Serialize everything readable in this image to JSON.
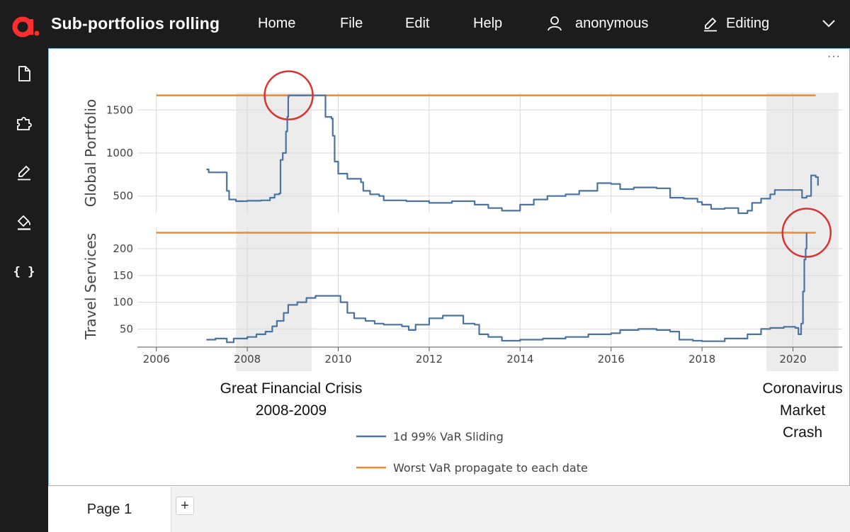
{
  "header": {
    "app_title": "Sub-portfolios rolling",
    "menu": [
      "Home",
      "File",
      "Edit",
      "Help"
    ],
    "user": "anonymous",
    "mode": "Editing"
  },
  "sidebar": {
    "items": [
      {
        "icon": "document-icon"
      },
      {
        "icon": "puzzle-icon"
      },
      {
        "icon": "pencil-icon"
      },
      {
        "icon": "paint-bucket-icon"
      },
      {
        "icon": "braces-icon",
        "label": "{ }"
      }
    ]
  },
  "canvas": {
    "more_label": "···"
  },
  "tabs": {
    "page_label": "Page 1",
    "add_label": "+"
  },
  "colors": {
    "var_series": "#4a73a0",
    "worst_series": "#f0882e",
    "highlight": "#ececec",
    "circle": "#d93232"
  },
  "chart_data": {
    "type": "line",
    "x_ticks": [
      "2006",
      "2008",
      "2010",
      "2012",
      "2014",
      "2016",
      "2018",
      "2020"
    ],
    "xlim": [
      "2005-08",
      "2021-02"
    ],
    "shaded_periods": [
      [
        "2007-10",
        "2009-06"
      ],
      [
        "2019-06",
        "2021-01"
      ]
    ],
    "annotations": [
      {
        "lines": [
          "Great Financial Crisis",
          "2008-2009"
        ],
        "period": "2008-2009"
      },
      {
        "lines": [
          "Coronavirus",
          "Market",
          "Crash"
        ],
        "period": "2020"
      }
    ],
    "legend": [
      "1d 99% VaR Sliding",
      "Worst VaR propagate to each date"
    ],
    "panels": [
      {
        "ylabel": "Global Portfolio",
        "y_ticks": [
          500,
          1000,
          1500
        ],
        "ylim": [
          300,
          1700
        ],
        "worst_var": {
          "from": "2006.0",
          "to": "2020.5",
          "value": 1670
        },
        "var_sliding": [
          [
            2007.1,
            810
          ],
          [
            2007.15,
            775
          ],
          [
            2007.5,
            775
          ],
          [
            2007.55,
            560
          ],
          [
            2007.6,
            460
          ],
          [
            2007.75,
            440
          ],
          [
            2008.0,
            445
          ],
          [
            2008.3,
            450
          ],
          [
            2008.5,
            480
          ],
          [
            2008.6,
            520
          ],
          [
            2008.7,
            530
          ],
          [
            2008.73,
            920
          ],
          [
            2008.78,
            1000
          ],
          [
            2008.85,
            1250
          ],
          [
            2008.88,
            1420
          ],
          [
            2008.9,
            1650
          ],
          [
            2008.91,
            1670
          ],
          [
            2009.7,
            1670
          ],
          [
            2009.72,
            1420
          ],
          [
            2009.85,
            1400
          ],
          [
            2009.88,
            1200
          ],
          [
            2009.92,
            900
          ],
          [
            2010.0,
            760
          ],
          [
            2010.2,
            700
          ],
          [
            2010.5,
            660
          ],
          [
            2010.55,
            560
          ],
          [
            2010.7,
            520
          ],
          [
            2010.9,
            500
          ],
          [
            2011.0,
            450
          ],
          [
            2011.5,
            440
          ],
          [
            2012.0,
            420
          ],
          [
            2012.5,
            440
          ],
          [
            2013.0,
            400
          ],
          [
            2013.3,
            360
          ],
          [
            2013.6,
            330
          ],
          [
            2014.0,
            400
          ],
          [
            2014.3,
            460
          ],
          [
            2014.6,
            500
          ],
          [
            2015.0,
            520
          ],
          [
            2015.3,
            560
          ],
          [
            2015.7,
            650
          ],
          [
            2016.0,
            640
          ],
          [
            2016.2,
            580
          ],
          [
            2016.5,
            600
          ],
          [
            2017.0,
            590
          ],
          [
            2017.3,
            480
          ],
          [
            2017.6,
            470
          ],
          [
            2017.9,
            430
          ],
          [
            2018.0,
            400
          ],
          [
            2018.2,
            350
          ],
          [
            2018.5,
            360
          ],
          [
            2018.8,
            300
          ],
          [
            2019.0,
            330
          ],
          [
            2019.1,
            420
          ],
          [
            2019.3,
            470
          ],
          [
            2019.5,
            520
          ],
          [
            2019.6,
            570
          ],
          [
            2020.15,
            570
          ],
          [
            2020.2,
            480
          ],
          [
            2020.3,
            500
          ],
          [
            2020.4,
            740
          ],
          [
            2020.5,
            720
          ],
          [
            2020.55,
            620
          ]
        ]
      },
      {
        "ylabel": "Travel Services",
        "y_ticks": [
          50,
          100,
          150,
          200
        ],
        "ylim": [
          20,
          240
        ],
        "worst_var": {
          "from": "2006.0",
          "to": "2020.5",
          "value": 230
        },
        "var_sliding": [
          [
            2007.1,
            30
          ],
          [
            2007.3,
            32
          ],
          [
            2007.55,
            25
          ],
          [
            2007.7,
            32
          ],
          [
            2008.0,
            35
          ],
          [
            2008.2,
            40
          ],
          [
            2008.4,
            45
          ],
          [
            2008.55,
            55
          ],
          [
            2008.65,
            65
          ],
          [
            2008.8,
            80
          ],
          [
            2008.9,
            95
          ],
          [
            2009.1,
            100
          ],
          [
            2009.3,
            108
          ],
          [
            2009.5,
            112
          ],
          [
            2009.9,
            112
          ],
          [
            2010.05,
            100
          ],
          [
            2010.2,
            80
          ],
          [
            2010.35,
            70
          ],
          [
            2010.6,
            65
          ],
          [
            2010.8,
            60
          ],
          [
            2011.0,
            58
          ],
          [
            2011.4,
            55
          ],
          [
            2011.55,
            48
          ],
          [
            2011.7,
            58
          ],
          [
            2012.0,
            70
          ],
          [
            2012.3,
            75
          ],
          [
            2012.7,
            75
          ],
          [
            2012.75,
            60
          ],
          [
            2013.0,
            58
          ],
          [
            2013.1,
            40
          ],
          [
            2013.3,
            35
          ],
          [
            2013.6,
            28
          ],
          [
            2014.0,
            30
          ],
          [
            2014.5,
            32
          ],
          [
            2015.0,
            35
          ],
          [
            2015.5,
            40
          ],
          [
            2016.0,
            42
          ],
          [
            2016.2,
            48
          ],
          [
            2016.6,
            50
          ],
          [
            2017.0,
            48
          ],
          [
            2017.3,
            45
          ],
          [
            2017.5,
            30
          ],
          [
            2017.8,
            28
          ],
          [
            2018.0,
            27
          ],
          [
            2018.5,
            32
          ],
          [
            2019.0,
            40
          ],
          [
            2019.3,
            50
          ],
          [
            2019.5,
            52
          ],
          [
            2019.8,
            54
          ],
          [
            2020.05,
            52
          ],
          [
            2020.12,
            40
          ],
          [
            2020.18,
            60
          ],
          [
            2020.22,
            120
          ],
          [
            2020.25,
            180
          ],
          [
            2020.28,
            200
          ],
          [
            2020.3,
            230
          ]
        ]
      }
    ]
  }
}
